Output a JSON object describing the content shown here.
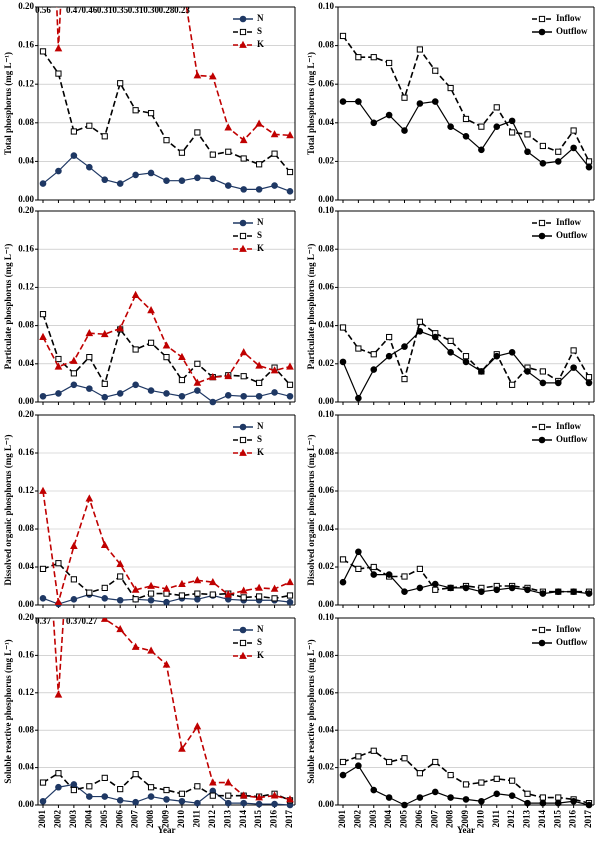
{
  "chart_data": [
    {
      "type": "line",
      "y_label": "Total phosphorus (mg L⁻¹)",
      "legend": "upper right",
      "categories": [
        "2001",
        "2002",
        "2003",
        "2004",
        "2005",
        "2006",
        "2007",
        "2008",
        "2009",
        "2010",
        "2011",
        "2012",
        "2013",
        "2014",
        "2015",
        "2016",
        "2017"
      ],
      "ylim": [
        0,
        0.2
      ],
      "yticks": [
        {
          "value": 0,
          "label": "0.00"
        },
        {
          "value": 0.04,
          "label": "0.04"
        },
        {
          "value": 0.08,
          "label": "0.08"
        },
        {
          "value": 0.12,
          "label": "0.12"
        },
        {
          "value": 0.16,
          "label": "0.16"
        },
        {
          "value": 0.2,
          "label": "0.20"
        }
      ],
      "grid": true,
      "series": [
        {
          "name": "N",
          "color": "#1f3864",
          "marker": "circle",
          "filled": true,
          "dashed": false,
          "values": [
            0.017,
            0.03,
            0.046,
            0.034,
            0.021,
            0.017,
            0.026,
            0.028,
            0.02,
            0.02,
            0.023,
            0.022,
            0.015,
            0.011,
            0.011,
            0.015,
            0.009
          ]
        },
        {
          "name": "S",
          "color": "#000000",
          "marker": "square",
          "filled": false,
          "dashed": true,
          "values": [
            0.154,
            0.131,
            0.071,
            0.077,
            0.066,
            0.121,
            0.093,
            0.09,
            0.062,
            0.049,
            0.07,
            0.047,
            0.05,
            0.043,
            0.037,
            0.048,
            0.029
          ]
        },
        {
          "name": "K",
          "color": "#c00000",
          "marker": "triangle",
          "filled": true,
          "dashed": true,
          "values": [
            0.56,
            0.157,
            0.47,
            0.46,
            0.31,
            0.35,
            0.31,
            0.3,
            0.28,
            0.23,
            0.129,
            0.128,
            0.075,
            0.062,
            0.079,
            0.068,
            0.067
          ],
          "value_labels": [
            "0.56",
            null,
            "0.47",
            "0.46",
            "0.31",
            "0.35",
            "0.31",
            "0.30",
            "0.28",
            "0.23",
            null,
            null,
            null,
            null,
            null,
            null,
            null
          ]
        }
      ]
    },
    {
      "type": "line",
      "y_label": "Total phosphorus (mg L⁻¹)",
      "legend": "upper right",
      "categories": [
        "2001",
        "2002",
        "2003",
        "2004",
        "2005",
        "2006",
        "2007",
        "2008",
        "2009",
        "2010",
        "2011",
        "2012",
        "2013",
        "2014",
        "2015",
        "2016",
        "2017"
      ],
      "ylim": [
        0,
        0.1
      ],
      "yticks": [
        {
          "value": 0,
          "label": "0.00"
        },
        {
          "value": 0.02,
          "label": "0.02"
        },
        {
          "value": 0.04,
          "label": "0.04"
        },
        {
          "value": 0.06,
          "label": "0.06"
        },
        {
          "value": 0.08,
          "label": "0.08"
        },
        {
          "value": 0.1,
          "label": "0.10"
        }
      ],
      "grid": true,
      "series": [
        {
          "name": "Inflow",
          "color": "#000000",
          "marker": "square",
          "filled": false,
          "dashed": true,
          "values": [
            0.085,
            0.074,
            0.074,
            0.071,
            0.053,
            0.078,
            0.067,
            0.058,
            0.042,
            0.038,
            0.048,
            0.035,
            0.034,
            0.028,
            0.025,
            0.036,
            0.02
          ]
        },
        {
          "name": "Outflow",
          "color": "#000000",
          "marker": "circle",
          "filled": true,
          "dashed": false,
          "values": [
            0.051,
            0.051,
            0.04,
            0.044,
            0.036,
            0.05,
            0.051,
            0.038,
            0.033,
            0.026,
            0.038,
            0.041,
            0.025,
            0.019,
            0.02,
            0.027,
            0.017
          ]
        }
      ]
    },
    {
      "type": "line",
      "y_label": "Particulate phosphorus (mg L⁻¹)",
      "legend": "upper right",
      "categories": [
        "2001",
        "2002",
        "2003",
        "2004",
        "2005",
        "2006",
        "2007",
        "2008",
        "2009",
        "2010",
        "2011",
        "2012",
        "2013",
        "2014",
        "2015",
        "2016",
        "2017"
      ],
      "ylim": [
        0,
        0.2
      ],
      "yticks": [
        {
          "value": 0,
          "label": "0.00"
        },
        {
          "value": 0.04,
          "label": "0.04"
        },
        {
          "value": 0.08,
          "label": "0.08"
        },
        {
          "value": 0.12,
          "label": "0.12"
        },
        {
          "value": 0.16,
          "label": "0.16"
        },
        {
          "value": 0.2,
          "label": "0.20"
        }
      ],
      "grid": true,
      "series": [
        {
          "name": "N",
          "color": "#1f3864",
          "marker": "circle",
          "filled": true,
          "dashed": false,
          "values": [
            0.006,
            0.009,
            0.018,
            0.014,
            0.005,
            0.009,
            0.018,
            0.012,
            0.009,
            0.006,
            0.012,
            0.0,
            0.007,
            0.006,
            0.006,
            0.01,
            0.006
          ]
        },
        {
          "name": "S",
          "color": "#000000",
          "marker": "square",
          "filled": false,
          "dashed": true,
          "values": [
            0.092,
            0.045,
            0.03,
            0.047,
            0.019,
            0.076,
            0.055,
            0.062,
            0.047,
            0.023,
            0.04,
            0.026,
            0.028,
            0.027,
            0.02,
            0.036,
            0.018
          ]
        },
        {
          "name": "K",
          "color": "#c00000",
          "marker": "triangle",
          "filled": true,
          "dashed": true,
          "values": [
            0.068,
            0.037,
            0.043,
            0.072,
            0.071,
            0.077,
            0.112,
            0.096,
            0.059,
            0.047,
            0.02,
            0.026,
            0.027,
            0.052,
            0.038,
            0.033,
            0.037
          ]
        }
      ]
    },
    {
      "type": "line",
      "y_label": "Particulate phosphorus (mg L⁻¹)",
      "legend": "upper right",
      "categories": [
        "2001",
        "2002",
        "2003",
        "2004",
        "2005",
        "2006",
        "2007",
        "2008",
        "2009",
        "2010",
        "2011",
        "2012",
        "2013",
        "2014",
        "2015",
        "2016",
        "2017"
      ],
      "ylim": [
        0,
        0.1
      ],
      "yticks": [
        {
          "value": 0,
          "label": "0.00"
        },
        {
          "value": 0.02,
          "label": "0.02"
        },
        {
          "value": 0.04,
          "label": "0.04"
        },
        {
          "value": 0.06,
          "label": "0.06"
        },
        {
          "value": 0.08,
          "label": "0.08"
        },
        {
          "value": 0.1,
          "label": "0.10"
        }
      ],
      "grid": true,
      "series": [
        {
          "name": "Inflow",
          "color": "#000000",
          "marker": "square",
          "filled": false,
          "dashed": true,
          "values": [
            0.039,
            0.028,
            0.025,
            0.034,
            0.012,
            0.042,
            0.036,
            0.032,
            0.024,
            0.016,
            0.025,
            0.009,
            0.018,
            0.016,
            0.011,
            0.027,
            0.013
          ]
        },
        {
          "name": "Outflow",
          "color": "#000000",
          "marker": "circle",
          "filled": true,
          "dashed": false,
          "values": [
            0.021,
            0.002,
            0.017,
            0.024,
            0.029,
            0.037,
            0.034,
            0.026,
            0.021,
            0.016,
            0.024,
            0.026,
            0.016,
            0.01,
            0.01,
            0.018,
            0.01
          ]
        }
      ]
    },
    {
      "type": "line",
      "y_label": "Dissolved organic phosphorus (mg L⁻¹)",
      "legend": "upper right",
      "categories": [
        "2001",
        "2002",
        "2003",
        "2004",
        "2005",
        "2006",
        "2007",
        "2008",
        "2009",
        "2010",
        "2011",
        "2012",
        "2013",
        "2014",
        "2015",
        "2016",
        "2017"
      ],
      "ylim": [
        0,
        0.2
      ],
      "yticks": [
        {
          "value": 0,
          "label": "0.00"
        },
        {
          "value": 0.04,
          "label": "0.04"
        },
        {
          "value": 0.08,
          "label": "0.08"
        },
        {
          "value": 0.12,
          "label": "0.12"
        },
        {
          "value": 0.16,
          "label": "0.16"
        },
        {
          "value": 0.2,
          "label": "0.20"
        }
      ],
      "grid": true,
      "series": [
        {
          "name": "N",
          "color": "#1f3864",
          "marker": "circle",
          "filled": true,
          "dashed": false,
          "values": [
            0.007,
            0.001,
            0.006,
            0.011,
            0.007,
            0.005,
            0.006,
            0.005,
            0.003,
            0.007,
            0.006,
            0.01,
            0.006,
            0.005,
            0.005,
            0.005,
            0.003
          ]
        },
        {
          "name": "S",
          "color": "#000000",
          "marker": "square",
          "filled": false,
          "dashed": true,
          "values": [
            0.038,
            0.044,
            0.027,
            0.013,
            0.018,
            0.03,
            0.006,
            0.012,
            0.012,
            0.01,
            0.012,
            0.011,
            0.012,
            0.008,
            0.009,
            0.007,
            0.01
          ]
        },
        {
          "name": "K",
          "color": "#c00000",
          "marker": "triangle",
          "filled": true,
          "dashed": true,
          "values": [
            0.12,
            0.003,
            0.062,
            0.112,
            0.063,
            0.043,
            0.016,
            0.02,
            0.017,
            0.022,
            0.026,
            0.024,
            0.011,
            0.015,
            0.018,
            0.017,
            0.024
          ]
        }
      ]
    },
    {
      "type": "line",
      "y_label": "Dissolved organic phosphorus (mg L⁻¹)",
      "legend": "upper right",
      "categories": [
        "2001",
        "2002",
        "2003",
        "2004",
        "2005",
        "2006",
        "2007",
        "2008",
        "2009",
        "2010",
        "2011",
        "2012",
        "2013",
        "2014",
        "2015",
        "2016",
        "2017"
      ],
      "ylim": [
        0,
        0.1
      ],
      "yticks": [
        {
          "value": 0,
          "label": "0.00"
        },
        {
          "value": 0.02,
          "label": "0.02"
        },
        {
          "value": 0.04,
          "label": "0.04"
        },
        {
          "value": 0.06,
          "label": "0.06"
        },
        {
          "value": 0.08,
          "label": "0.08"
        },
        {
          "value": 0.1,
          "label": "0.10"
        }
      ],
      "grid": true,
      "series": [
        {
          "name": "Inflow",
          "color": "#000000",
          "marker": "square",
          "filled": false,
          "dashed": true,
          "values": [
            0.024,
            0.019,
            0.02,
            0.015,
            0.015,
            0.019,
            0.008,
            0.009,
            0.01,
            0.009,
            0.01,
            0.01,
            0.009,
            0.007,
            0.007,
            0.007,
            0.007
          ]
        },
        {
          "name": "Outflow",
          "color": "#000000",
          "marker": "circle",
          "filled": true,
          "dashed": false,
          "values": [
            0.012,
            0.028,
            0.016,
            0.016,
            0.007,
            0.009,
            0.011,
            0.009,
            0.009,
            0.007,
            0.008,
            0.009,
            0.008,
            0.006,
            0.007,
            0.007,
            0.006
          ]
        }
      ]
    },
    {
      "type": "line",
      "y_label": "Soluble reactive phosphorus (mg L⁻¹)",
      "x_label": "Year",
      "legend": "upper right",
      "categories": [
        "2001",
        "2002",
        "2003",
        "2004",
        "2005",
        "2006",
        "2007",
        "2008",
        "2009",
        "2010",
        "2011",
        "2012",
        "2013",
        "2014",
        "2015",
        "2016",
        "2017"
      ],
      "ylim": [
        0,
        0.2
      ],
      "yticks": [
        {
          "value": 0,
          "label": "0.00"
        },
        {
          "value": 0.04,
          "label": "0.04"
        },
        {
          "value": 0.08,
          "label": "0.08"
        },
        {
          "value": 0.12,
          "label": "0.12"
        },
        {
          "value": 0.16,
          "label": "0.16"
        },
        {
          "value": 0.2,
          "label": "0.20"
        }
      ],
      "grid": true,
      "series": [
        {
          "name": "N",
          "color": "#1f3864",
          "marker": "circle",
          "filled": true,
          "dashed": false,
          "values": [
            0.004,
            0.019,
            0.022,
            0.009,
            0.009,
            0.005,
            0.003,
            0.009,
            0.006,
            0.004,
            0.002,
            0.015,
            0.002,
            0.002,
            0.001,
            0.001,
            0.0
          ]
        },
        {
          "name": "S",
          "color": "#000000",
          "marker": "square",
          "filled": false,
          "dashed": true,
          "values": [
            0.024,
            0.034,
            0.016,
            0.02,
            0.029,
            0.017,
            0.033,
            0.019,
            0.016,
            0.012,
            0.02,
            0.01,
            0.01,
            0.01,
            0.009,
            0.012,
            0.005
          ]
        },
        {
          "name": "K",
          "color": "#c00000",
          "marker": "triangle",
          "filled": true,
          "dashed": true,
          "values": [
            0.37,
            0.118,
            0.37,
            0.27,
            0.199,
            0.188,
            0.169,
            0.165,
            0.15,
            0.06,
            0.084,
            0.024,
            0.024,
            0.01,
            0.008,
            0.01,
            0.006
          ],
          "value_labels": [
            "0.37",
            null,
            "0.37",
            "0.27",
            null,
            null,
            null,
            null,
            null,
            null,
            null,
            null,
            null,
            null,
            null,
            null,
            null
          ]
        }
      ]
    },
    {
      "type": "line",
      "y_label": "Soluble reactive phosphorus (mg L⁻¹)",
      "x_label": "Year",
      "legend": "upper right",
      "categories": [
        "2001",
        "2002",
        "2003",
        "2004",
        "2005",
        "2006",
        "2007",
        "2008",
        "2009",
        "2010",
        "2011",
        "2012",
        "2013",
        "2014",
        "2015",
        "2016",
        "2017"
      ],
      "ylim": [
        0,
        0.1
      ],
      "yticks": [
        {
          "value": 0,
          "label": "0.00"
        },
        {
          "value": 0.02,
          "label": "0.02"
        },
        {
          "value": 0.04,
          "label": "0.04"
        },
        {
          "value": 0.06,
          "label": "0.06"
        },
        {
          "value": 0.08,
          "label": "0.08"
        },
        {
          "value": 0.1,
          "label": "0.10"
        }
      ],
      "grid": true,
      "series": [
        {
          "name": "Inflow",
          "color": "#000000",
          "marker": "square",
          "filled": false,
          "dashed": true,
          "values": [
            0.023,
            0.026,
            0.029,
            0.023,
            0.025,
            0.017,
            0.023,
            0.016,
            0.011,
            0.012,
            0.014,
            0.013,
            0.006,
            0.004,
            0.004,
            0.003,
            0.001
          ]
        },
        {
          "name": "Outflow",
          "color": "#000000",
          "marker": "circle",
          "filled": true,
          "dashed": false,
          "values": [
            0.016,
            0.021,
            0.008,
            0.004,
            0.0,
            0.004,
            0.007,
            0.004,
            0.003,
            0.002,
            0.006,
            0.005,
            0.001,
            0.001,
            0.001,
            0.002,
            0.0
          ]
        }
      ]
    }
  ]
}
